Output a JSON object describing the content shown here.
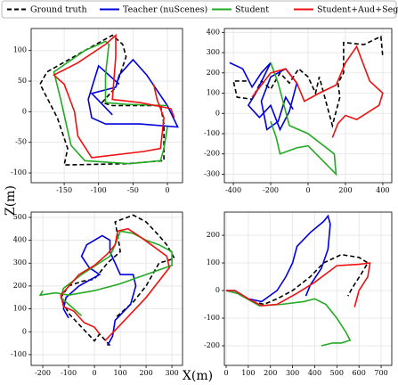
{
  "xlabel": "X(m)",
  "ylabel": "Z(m)",
  "chart_data": [
    {
      "type": "line",
      "grid": true,
      "xlim": [
        -198,
        22
      ],
      "ylim": [
        -116,
        136
      ],
      "xticks": [
        -150,
        -100,
        -50,
        0
      ],
      "yticks": [
        100,
        50,
        0,
        -50,
        -100
      ],
      "series": [
        {
          "name": "Ground truth",
          "color": "#000000",
          "style": "dashed",
          "x": [
            -10,
            -5,
            -5,
            -60,
            -150,
            -145,
            -160,
            -185,
            -175,
            -120,
            -80,
            -65,
            -60,
            -75,
            -95,
            -80,
            -10
          ],
          "y": [
            10,
            -20,
            -80,
            -85,
            -87,
            -60,
            -10,
            45,
            65,
            100,
            125,
            110,
            90,
            40,
            15,
            10,
            10
          ]
        },
        {
          "name": "Teacher (nuScenes)",
          "color": "#0000dd",
          "style": "solid",
          "x": [
            -70,
            -100,
            -115,
            -110,
            -90,
            -40,
            15,
            0,
            -30,
            -50,
            -70,
            -75,
            -110,
            -80
          ],
          "y": [
            45,
            75,
            20,
            -10,
            -20,
            -20,
            -25,
            10,
            60,
            85,
            60,
            40,
            30,
            -5
          ]
        },
        {
          "name": "Student",
          "color": "#22aa22",
          "style": "solid",
          "x": [
            0,
            -5,
            -10,
            -55,
            -120,
            -140,
            -155,
            -165,
            -120,
            -90,
            -85,
            -90,
            -90,
            -60,
            0
          ],
          "y": [
            -25,
            -60,
            -80,
            -85,
            -80,
            -55,
            20,
            65,
            100,
            115,
            110,
            60,
            15,
            12,
            10
          ]
        },
        {
          "name": "Student+Aud+Seg",
          "color": "#ee1111",
          "style": "solid",
          "x": [
            -20,
            -15,
            -5,
            -10,
            -35,
            -110,
            -130,
            -135,
            -150,
            -165,
            -130,
            -90,
            -75,
            -75,
            -80,
            -40,
            5,
            10
          ],
          "y": [
            45,
            20,
            -10,
            -60,
            -65,
            -75,
            -40,
            0,
            45,
            60,
            80,
            110,
            125,
            90,
            20,
            15,
            5,
            -10
          ]
        }
      ]
    },
    {
      "type": "line",
      "grid": true,
      "xlim": [
        -448,
        448
      ],
      "ylim": [
        -342,
        419
      ],
      "xticks": [
        -400,
        -200,
        0,
        200,
        400
      ],
      "yticks": [
        400,
        300,
        200,
        100,
        0,
        -100,
        -200,
        -300
      ],
      "series": [
        {
          "color": "#000000",
          "style": "dashed",
          "x": [
            -330,
            -400,
            -380,
            -300,
            -250,
            -200,
            -150,
            -100,
            -50,
            0,
            40,
            60,
            130,
            150,
            170,
            160,
            190,
            190,
            300,
            390,
            400
          ],
          "y": [
            160,
            160,
            80,
            70,
            160,
            120,
            200,
            150,
            220,
            180,
            100,
            180,
            -60,
            10,
            80,
            150,
            200,
            350,
            340,
            380,
            280
          ]
        },
        {
          "color": "#0000dd",
          "style": "solid",
          "x": [
            -420,
            -350,
            -300,
            -250,
            -200,
            -280,
            -320,
            -260,
            -200,
            -150,
            -100,
            -60,
            -120,
            -200,
            -250,
            -220,
            -160,
            -120,
            -80
          ],
          "y": [
            250,
            220,
            130,
            200,
            250,
            100,
            40,
            -20,
            40,
            -80,
            10,
            150,
            220,
            180,
            60,
            -80,
            -40,
            80,
            20
          ]
        },
        {
          "color": "#22aa22",
          "style": "solid",
          "x": [
            -200,
            -170,
            -150,
            -60,
            0,
            150,
            140,
            0,
            -100,
            -160,
            -200
          ],
          "y": [
            -40,
            -120,
            -200,
            -170,
            -160,
            -300,
            -200,
            -100,
            -60,
            150,
            250
          ]
        },
        {
          "color": "#ee1111",
          "style": "solid",
          "x": [
            -300,
            -200,
            -120,
            -60,
            -20,
            60,
            150,
            200,
            260,
            330,
            400,
            380,
            260,
            200,
            160,
            130
          ],
          "y": [
            80,
            200,
            220,
            150,
            60,
            100,
            140,
            250,
            330,
            160,
            100,
            40,
            -30,
            -10,
            -50,
            -120
          ]
        }
      ]
    },
    {
      "type": "line",
      "grid": true,
      "xlim": [
        -245,
        341
      ],
      "ylim": [
        -147,
        523
      ],
      "xticks": [
        -200,
        -100,
        0,
        100,
        200,
        300
      ],
      "yticks": [
        500,
        400,
        300,
        200,
        100,
        0,
        -100
      ],
      "series": [
        {
          "color": "#000000",
          "style": "dashed",
          "x": [
            60,
            20,
            0,
            -50,
            -100,
            -130,
            -100,
            -50,
            0,
            50,
            100,
            90,
            80,
            150,
            200,
            250,
            280,
            310,
            250,
            200,
            150,
            80
          ],
          "y": [
            -60,
            -10,
            -40,
            20,
            80,
            150,
            200,
            220,
            230,
            300,
            350,
            420,
            480,
            510,
            480,
            420,
            380,
            320,
            300,
            200,
            130,
            60
          ]
        },
        {
          "color": "#0000dd",
          "style": "solid",
          "x": [
            50,
            70,
            80,
            140,
            160,
            150,
            100,
            60,
            60,
            30,
            0,
            -30,
            -50,
            -20,
            20,
            -60,
            -110,
            -120,
            -100
          ],
          "y": [
            -60,
            -20,
            50,
            120,
            200,
            250,
            250,
            350,
            400,
            420,
            400,
            380,
            330,
            280,
            250,
            200,
            150,
            100,
            60
          ]
        },
        {
          "color": "#22aa22",
          "style": "solid",
          "x": [
            -200,
            -210,
            -150,
            -100,
            0,
            100,
            250,
            300,
            300,
            250,
            200,
            150,
            100,
            80,
            60,
            -50,
            -120,
            -130,
            -100,
            -50
          ],
          "y": [
            180,
            160,
            170,
            160,
            180,
            210,
            270,
            290,
            350,
            380,
            400,
            430,
            440,
            380,
            330,
            250,
            190,
            150,
            120,
            70
          ]
        },
        {
          "color": "#ee1111",
          "style": "solid",
          "x": [
            40,
            100,
            200,
            290,
            280,
            220,
            170,
            130,
            90,
            80,
            50,
            0,
            -60,
            -130,
            -120,
            -80,
            -40,
            0,
            20
          ],
          "y": [
            -40,
            30,
            150,
            280,
            330,
            380,
            420,
            450,
            440,
            380,
            340,
            290,
            250,
            160,
            110,
            90,
            40,
            20,
            -10
          ]
        }
      ]
    },
    {
      "type": "line",
      "grid": true,
      "xlim": [
        -8,
        748
      ],
      "ylim": [
        -271,
        284
      ],
      "xticks": [
        0,
        100,
        200,
        300,
        400,
        500,
        600,
        700
      ],
      "yticks": [
        200,
        100,
        0,
        -100,
        -200
      ],
      "series": [
        {
          "color": "#000000",
          "style": "dashed",
          "x": [
            0,
            50,
            120,
            170,
            230,
            300,
            380,
            440,
            520,
            600,
            640,
            610,
            570,
            550
          ],
          "y": [
            0,
            -10,
            -40,
            -50,
            -30,
            0,
            50,
            100,
            130,
            120,
            100,
            60,
            10,
            -20
          ]
        },
        {
          "color": "#0000dd",
          "style": "solid",
          "x": [
            0,
            40,
            100,
            160,
            230,
            270,
            300,
            320,
            380,
            440,
            460,
            470,
            460,
            430,
            380,
            360
          ],
          "y": [
            0,
            0,
            -30,
            -40,
            0,
            50,
            100,
            160,
            210,
            250,
            270,
            240,
            150,
            80,
            20,
            -20
          ]
        },
        {
          "color": "#22aa22",
          "style": "solid",
          "x": [
            0,
            50,
            150,
            250,
            350,
            400,
            450,
            500,
            540,
            560,
            520,
            480,
            430
          ],
          "y": [
            0,
            -10,
            -55,
            -50,
            -40,
            -30,
            -50,
            -100,
            -150,
            -180,
            -190,
            -190,
            -200
          ]
        },
        {
          "color": "#ee1111",
          "style": "solid",
          "x": [
            0,
            40,
            100,
            160,
            230,
            320,
            400,
            450,
            500,
            600,
            650,
            640,
            600,
            580
          ],
          "y": [
            0,
            0,
            -30,
            -55,
            -50,
            -10,
            30,
            60,
            90,
            95,
            100,
            50,
            0,
            -60
          ]
        }
      ]
    }
  ]
}
